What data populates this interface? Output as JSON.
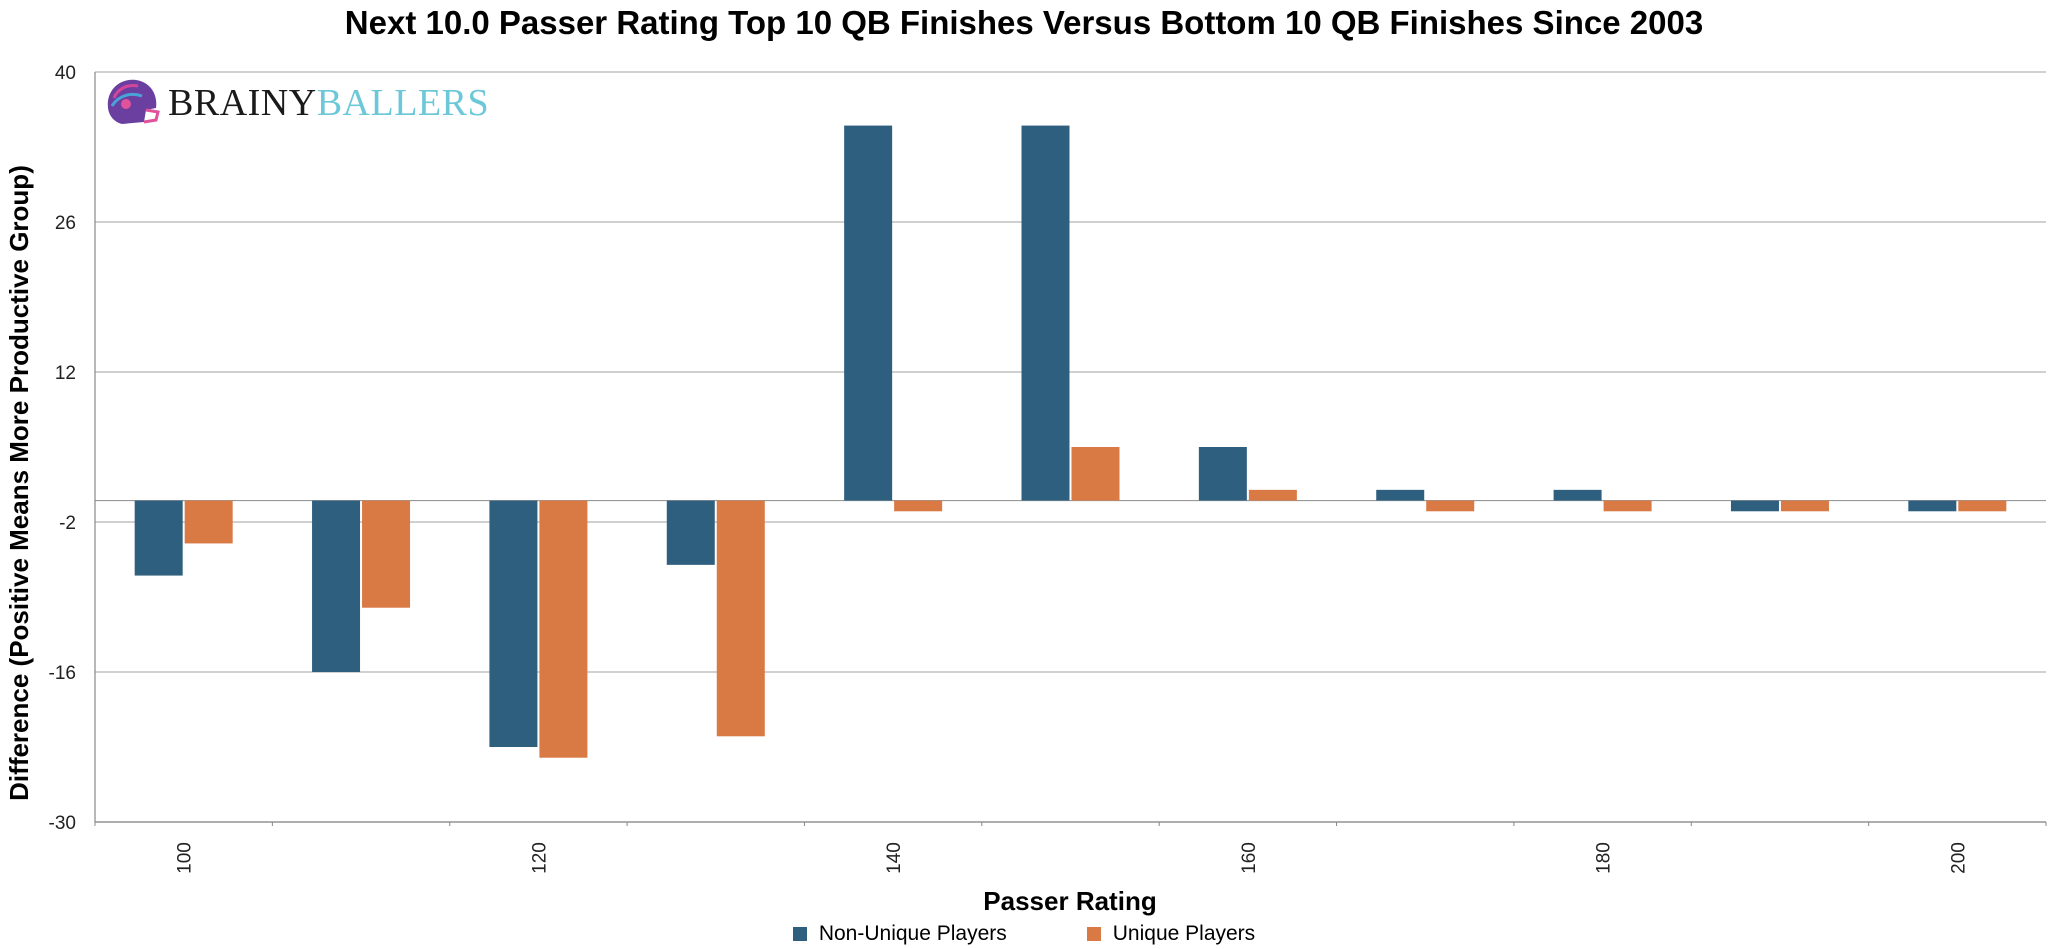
{
  "chart_data": {
    "type": "bar",
    "title": "Next 10.0 Passer Rating Top 10 QB Finishes Versus Bottom 10 QB Finishes Since 2003",
    "xlabel": "Passer Rating",
    "ylabel": "Difference (Positive Means More Productive Group)",
    "ylim": [
      -30,
      40
    ],
    "yticks": [
      "40",
      "26",
      "12",
      "-2",
      "-16",
      "-30"
    ],
    "categories": [
      "100",
      "110",
      "120",
      "130",
      "140",
      "150",
      "160",
      "170",
      "180",
      "190",
      "200"
    ],
    "category_tick_labels": [
      "100",
      "",
      "120",
      "",
      "140",
      "",
      "160",
      "",
      "180",
      "",
      "200"
    ],
    "series": [
      {
        "name": "Non-Unique Players",
        "color": "#2f5f7e",
        "values": [
          -7,
          -16,
          -23,
          -6,
          35,
          35,
          5,
          1,
          1,
          -1,
          -1
        ]
      },
      {
        "name": "Unique Players",
        "color": "#d97944",
        "values": [
          -4,
          -10,
          -24,
          -22,
          -1,
          5,
          1,
          -1,
          -1,
          -1,
          -1
        ]
      }
    ],
    "grid": true,
    "legend_position": "bottom-center"
  },
  "logo": {
    "text_part1": "BRAINY",
    "text_part2": "BALLERS",
    "icon": "helmet-icon"
  }
}
